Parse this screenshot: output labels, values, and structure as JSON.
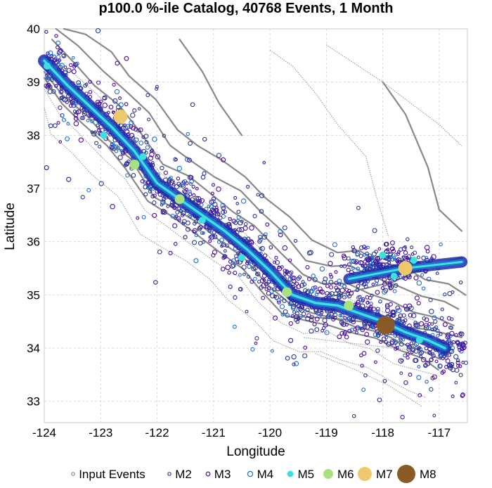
{
  "chart_data": {
    "type": "scatter",
    "title": "p100.0 %-ile Catalog, 40768 Events, 1 Month",
    "xlabel": "Longitude",
    "ylabel": "Latitude",
    "xlim": [
      -124,
      -116.5
    ],
    "ylim": [
      32.6,
      40
    ],
    "xticks": [
      -124,
      -123,
      -122,
      -121,
      -120,
      -119,
      -118,
      -117
    ],
    "xtick_labels": [
      "-124",
      "-123",
      "-122",
      "-121",
      "-120",
      "-119",
      "-118",
      "-117"
    ],
    "yticks": [
      33,
      34,
      35,
      36,
      37,
      38,
      39,
      40
    ],
    "ytick_labels": [
      "33",
      "34",
      "35",
      "36",
      "37",
      "38",
      "39",
      "40"
    ],
    "grid": true,
    "legend_position": "bottom",
    "legend": [
      {
        "label": "Input Events",
        "style": "open-circle",
        "color": "#8c8c8c"
      },
      {
        "label": "M2",
        "style": "open-circle",
        "color": "#2b3a8f"
      },
      {
        "label": "M3",
        "style": "open-circle",
        "color": "#4b0d9e"
      },
      {
        "label": "M4",
        "style": "open-circle",
        "color": "#1f6fd0"
      },
      {
        "label": "M5",
        "style": "filled-circle",
        "color": "#3de0e0"
      },
      {
        "label": "M6",
        "style": "filled-circle",
        "color": "#a8e27f"
      },
      {
        "label": "M7",
        "style": "filled-circle",
        "color": "#eec86c"
      },
      {
        "label": "M8",
        "style": "filled-circle",
        "color": "#8a5a26"
      }
    ],
    "trend": {
      "name": "M4",
      "x": [
        -124,
        -123.6,
        -123.2,
        -122.8,
        -122.4,
        -122,
        -121.6,
        -121.2,
        -120.8,
        -120.4,
        -120,
        -119.6,
        -119.2,
        -118.8,
        -118.4,
        -118,
        -117.6,
        -117.2,
        -116.9
      ],
      "y": [
        39.4,
        38.95,
        38.55,
        38.15,
        37.7,
        37.1,
        36.8,
        36.5,
        36.2,
        35.85,
        35.45,
        35.0,
        34.85,
        34.8,
        34.65,
        34.5,
        34.3,
        34.15,
        34.0
      ]
    },
    "large_events": [
      {
        "magnitude_class": "M7",
        "x": -122.65,
        "y": 38.35
      },
      {
        "magnitude_class": "M7",
        "x": -117.6,
        "y": 35.5
      },
      {
        "magnitude_class": "M8",
        "x": -117.95,
        "y": 34.43
      },
      {
        "magnitude_class": "M6",
        "x": -122.4,
        "y": 37.45
      },
      {
        "magnitude_class": "M6",
        "x": -121.6,
        "y": 36.8
      },
      {
        "magnitude_class": "M6",
        "x": -119.7,
        "y": 35.05
      },
      {
        "magnitude_class": "M6",
        "x": -118.6,
        "y": 34.8
      },
      {
        "magnitude_class": "M5",
        "x": -123.95,
        "y": 39.3
      },
      {
        "magnitude_class": "M5",
        "x": -122.95,
        "y": 38.0
      },
      {
        "magnitude_class": "M5",
        "x": -122.25,
        "y": 37.6
      },
      {
        "magnitude_class": "M5",
        "x": -121.2,
        "y": 36.4
      },
      {
        "magnitude_class": "M5",
        "x": -120.5,
        "y": 35.7
      },
      {
        "magnitude_class": "M5",
        "x": -117.8,
        "y": 35.35
      },
      {
        "magnitude_class": "M5",
        "x": -117.45,
        "y": 35.65
      },
      {
        "magnitude_class": "M5",
        "x": -117.35,
        "y": 34.15
      },
      {
        "magnitude_class": "M5",
        "x": -118.0,
        "y": 35.75
      }
    ]
  }
}
